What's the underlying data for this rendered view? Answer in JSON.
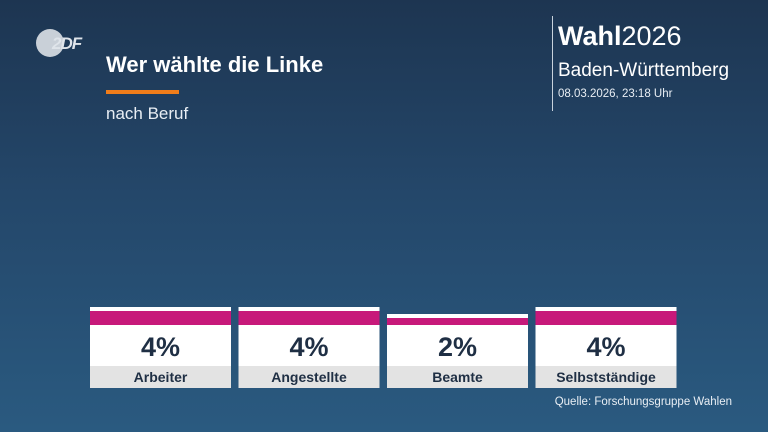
{
  "header": {
    "logo_text": "2DF",
    "title": "Wer wählte die Linke",
    "subtitle": "nach Beruf",
    "brand_bold": "Wahl",
    "brand_year": "2026",
    "region": "Baden-Württemberg",
    "timestamp": "08.03.2026, 23:18 Uhr"
  },
  "colors": {
    "accent": "#f07d1a",
    "bar": "#c7197a",
    "card": "#ffffff",
    "label_bg": "#e3e3e3"
  },
  "chart_data": {
    "type": "bar",
    "title": "Wer wählte die Linke",
    "subtitle": "nach Beruf",
    "categories": [
      "Arbeiter",
      "Angestellte",
      "Beamte",
      "Selbstständige"
    ],
    "values": [
      4,
      4,
      2,
      4
    ],
    "value_labels": [
      "4%",
      "4%",
      "2%",
      "4%"
    ],
    "unit": "%",
    "ylim": [
      0,
      100
    ],
    "grid": false
  },
  "footer": {
    "source": "Quelle: Forschungsgruppe Wahlen"
  }
}
